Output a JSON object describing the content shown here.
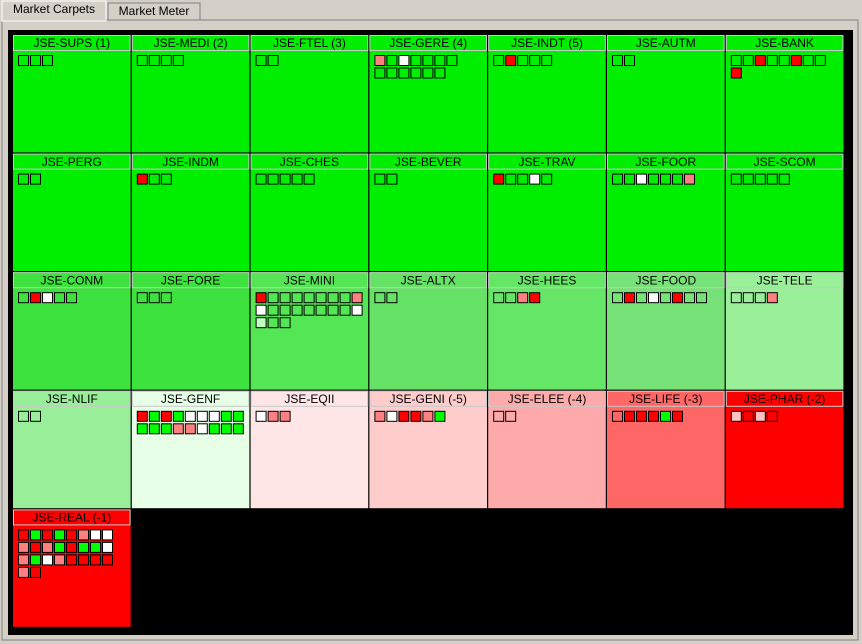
{
  "tabs": [
    "Market Carpets",
    "Market Meter"
  ],
  "tiles": [
    {
      "label": "JSE-SUPS (1)",
      "color": "#00ee00",
      "cells": [
        [
          null,
          null,
          null
        ]
      ]
    },
    {
      "label": "JSE-MEDI (2)",
      "color": "#00ee00",
      "cells": [
        [
          null,
          null,
          null,
          null
        ]
      ]
    },
    {
      "label": "JSE-FTEL (3)",
      "color": "#00ee00",
      "cells": [
        [
          null,
          null
        ]
      ]
    },
    {
      "label": "JSE-GERE (4)",
      "color": "#00ee00",
      "cells": [
        [
          "#ff8080",
          null,
          "#ffffff",
          null,
          null,
          null,
          null
        ],
        [
          null,
          null,
          null,
          null,
          null,
          null
        ]
      ]
    },
    {
      "label": "JSE-INDT (5)",
      "color": "#00ee00",
      "cells": [
        [
          null,
          "#ff0000",
          null,
          null,
          null
        ]
      ]
    },
    {
      "label": "JSE-AUTM",
      "color": "#00ee00",
      "cells": [
        [
          null,
          null
        ]
      ]
    },
    {
      "label": "JSE-BANK",
      "color": "#00ee00",
      "cells": [
        [
          null,
          null,
          "#ff0000",
          null,
          null,
          "#ff0000",
          null,
          null
        ],
        [
          "#ff0000"
        ]
      ]
    },
    {
      "label": "JSE-PERG",
      "color": "#00ee00",
      "cells": [
        [
          null,
          null
        ]
      ]
    },
    {
      "label": "JSE-INDM",
      "color": "#00ee00",
      "cells": [
        [
          "#ff0000",
          null,
          null
        ]
      ]
    },
    {
      "label": "JSE-CHES",
      "color": "#00ee00",
      "cells": [
        [
          null,
          null,
          null,
          null,
          null
        ]
      ]
    },
    {
      "label": "JSE-BEVER",
      "color": "#00ee00",
      "cells": [
        [
          null,
          null
        ]
      ]
    },
    {
      "label": "JSE-TRAV",
      "color": "#00ee00",
      "cells": [
        [
          "#ff0000",
          null,
          null,
          "#ffffff",
          null
        ]
      ]
    },
    {
      "label": "JSE-FOOR",
      "color": "#00ee00",
      "cells": [
        [
          null,
          null,
          "#ffffff",
          null,
          null,
          null,
          "#ff8080"
        ]
      ]
    },
    {
      "label": "JSE-SCOM",
      "color": "#00ee00",
      "cells": [
        [
          null,
          null,
          null,
          null,
          null
        ]
      ]
    },
    {
      "label": "JSE-CONM",
      "color": "#3ee23e",
      "cells": [
        [
          null,
          "#ff0000",
          "#ffffff",
          null,
          null
        ]
      ]
    },
    {
      "label": "JSE-FORE",
      "color": "#3ee23e",
      "cells": [
        [
          null,
          null,
          null
        ]
      ]
    },
    {
      "label": "JSE-MINI",
      "color": "#55e655",
      "cells": [
        [
          "#ff0000",
          null,
          null,
          null,
          null,
          null,
          null,
          null,
          "#ff8080"
        ],
        [
          "#ffffff",
          null,
          null,
          null,
          null,
          null,
          null,
          null,
          "#ffffff"
        ],
        [
          "#c0ffc0",
          null,
          null
        ]
      ]
    },
    {
      "label": "JSE-ALTX",
      "color": "#66e266",
      "cells": [
        [
          null,
          null
        ]
      ]
    },
    {
      "label": "JSE-HEES",
      "color": "#66e666",
      "cells": [
        [
          null,
          null,
          "#ff8080",
          "#ff0000"
        ]
      ]
    },
    {
      "label": "JSE-FOOD",
      "color": "#77e277",
      "cells": [
        [
          null,
          "#ff0000",
          null,
          "#ffffff",
          null,
          "#ff0000",
          null,
          null
        ]
      ]
    },
    {
      "label": "JSE-TELE",
      "color": "#99f099",
      "cells": [
        [
          null,
          null,
          null,
          "#ff8080"
        ]
      ]
    },
    {
      "label": "JSE-NLIF",
      "color": "#99ee99",
      "cells": [
        [
          null,
          null
        ]
      ]
    },
    {
      "label": "JSE-GENF",
      "color": "#e6ffe6",
      "cells": [
        [
          "#ff0000",
          "#00ff00",
          "#ff0000",
          "#00ff00",
          "#ffffff",
          "#ffffff",
          "#ffffff",
          "#00ff00",
          "#00ff00"
        ],
        [
          "#00ff00",
          "#00ff00",
          "#00ff00",
          "#ff8080",
          "#ff8080",
          "#ffffff",
          "#00ff00",
          "#00ff00",
          "#00ff00"
        ]
      ]
    },
    {
      "label": "JSE-EQII",
      "color": "#ffe6e6",
      "cells": [
        [
          "#ffffff",
          "#ff8080",
          "#ff8080"
        ]
      ]
    },
    {
      "label": "JSE-GENI (-5)",
      "color": "#ffcccc",
      "cells": [
        [
          "#ff8080",
          "#ffffff",
          "#ff0000",
          "#ff0000",
          "#ff8080",
          "#00ff00"
        ]
      ]
    },
    {
      "label": "JSE-ELEE (-4)",
      "color": "#ffaaaa",
      "cells": [
        [
          null,
          null
        ]
      ]
    },
    {
      "label": "JSE-LIFE (-3)",
      "color": "#ff6666",
      "cells": [
        [
          null,
          "#ff0000",
          "#ff0000",
          "#ff0000",
          "#00ff00",
          "#ff0000"
        ]
      ]
    },
    {
      "label": "JSE-PHAR (-2)",
      "color": "#ff0000",
      "cells": [
        [
          "#ffc0c0",
          null,
          "#ffc0c0",
          null
        ]
      ]
    },
    {
      "label": "JSE-REAL (-1)",
      "color": "#ff0000",
      "cells": [
        [
          null,
          "#00ff00",
          "#ff0000",
          "#00ff00",
          "#ff0000",
          "#ff8080",
          "#ffffff",
          "#ffffff"
        ],
        [
          "#ff8080",
          "#ff0000",
          "#ff8080",
          "#00ff00",
          "#ff0000",
          "#00ff00",
          "#00ff00",
          "#ffffff"
        ],
        [
          "#ff8080",
          "#00ff00",
          "#ffffff",
          "#ff8080",
          "#ff0000",
          "#ff0000",
          "#ff0000",
          "#ff0000"
        ],
        [
          "#ff8080",
          "#ff0000"
        ]
      ]
    }
  ]
}
